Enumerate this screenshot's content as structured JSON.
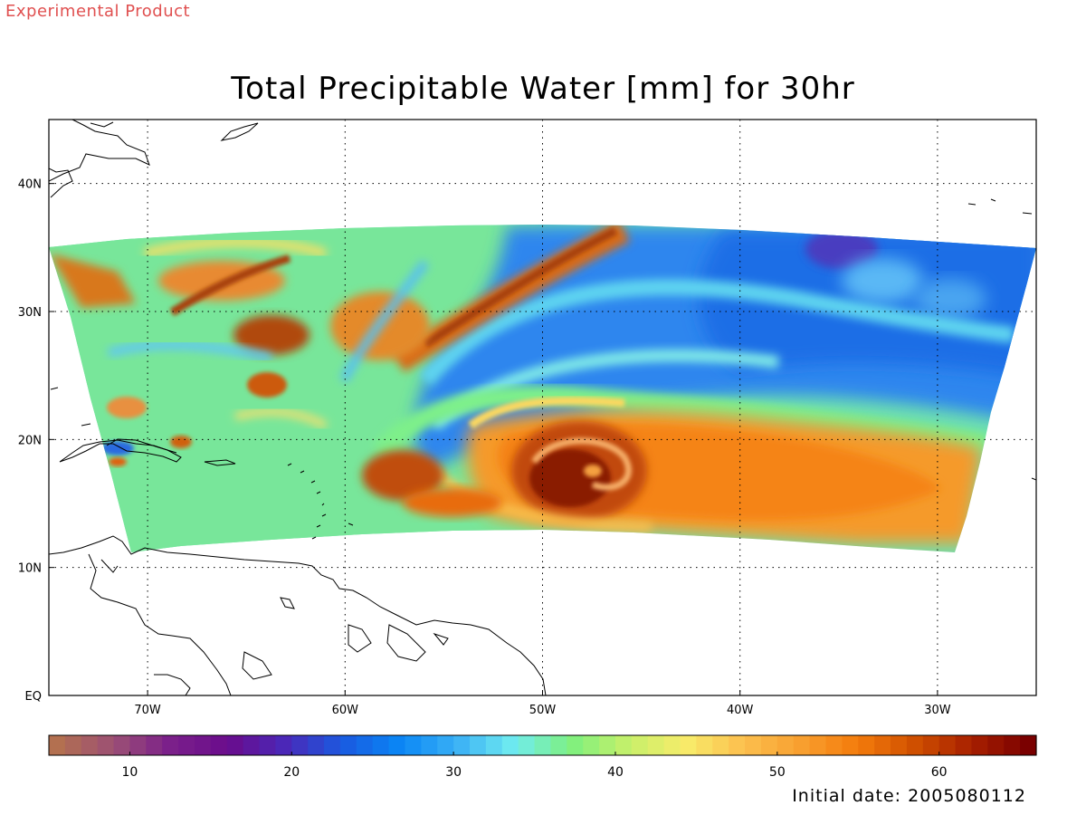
{
  "banner": "Experimental Product",
  "title": "Total Precipitable Water [mm] for 30hr",
  "footer": "Initial date: 2005080112",
  "map": {
    "lon_range": [
      -75,
      -25
    ],
    "lat_range": [
      0,
      45
    ],
    "lon_ticks": [
      {
        "value": -70,
        "label": "70W"
      },
      {
        "value": -60,
        "label": "60W"
      },
      {
        "value": -50,
        "label": "50W"
      },
      {
        "value": -40,
        "label": "40W"
      },
      {
        "value": -30,
        "label": "30W"
      }
    ],
    "lat_ticks": [
      {
        "value": 0,
        "label": "EQ"
      },
      {
        "value": 10,
        "label": "10N"
      },
      {
        "value": 20,
        "label": "20N"
      },
      {
        "value": 30,
        "label": "30N"
      },
      {
        "value": 40,
        "label": "40N"
      }
    ],
    "grid": "dotted",
    "features": [
      "hurricane-vortex"
    ]
  },
  "colorbar": {
    "min": 5,
    "max": 66,
    "ticks": [
      {
        "value": 10,
        "label": "10"
      },
      {
        "value": 20,
        "label": "20"
      },
      {
        "value": 30,
        "label": "30"
      },
      {
        "value": 40,
        "label": "40"
      },
      {
        "value": 50,
        "label": "50"
      },
      {
        "value": 60,
        "label": "60"
      }
    ],
    "colors": [
      "#b37050",
      "#9c4f75",
      "#7a1f8a",
      "#6a0c8c",
      "#4a28b8",
      "#1a5ae0",
      "#0a86f5",
      "#3ab0f5",
      "#70ecf0",
      "#7ef07e",
      "#c6f06a",
      "#f8ec6a",
      "#fcc04e",
      "#f8a030",
      "#f47c0c",
      "#d05000",
      "#a82000",
      "#7a0000"
    ]
  }
}
